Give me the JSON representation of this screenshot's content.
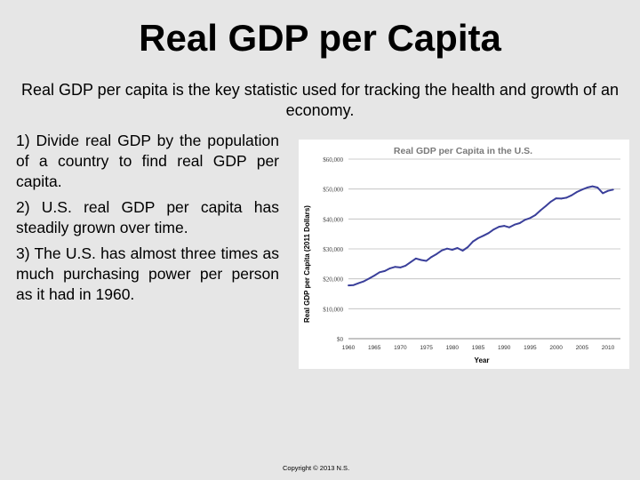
{
  "slide": {
    "title": "Real GDP per Capita",
    "subtitle": "Real GDP per capita is the key statistic used for tracking the health and growth of an economy.",
    "points": [
      "1) Divide real GDP by the population of a country to find real GDP per capita.",
      "2) U.S. real GDP per capita has steadily grown over time.",
      "3) The U.S. has almost three times as much purchasing power per person as it had in 1960."
    ],
    "copyright": "Copyright © 2013 N.S."
  },
  "chart_data": {
    "type": "line",
    "title": "Real GDP per Capita in the U.S.",
    "xlabel": "Year",
    "ylabel": "Real GDP per Capita (2011 Dollars)",
    "xlim": [
      1960,
      2010
    ],
    "ylim": [
      0,
      60000
    ],
    "x_ticks": [
      1960,
      1965,
      1970,
      1975,
      1980,
      1985,
      1990,
      1995,
      2000,
      2005,
      2010
    ],
    "y_ticks": [
      0,
      10000,
      20000,
      30000,
      40000,
      50000,
      60000
    ],
    "y_tick_labels": [
      "$0",
      "$10,000",
      "$20,000",
      "$30,000",
      "$40,000",
      "$50,000",
      "$60,000"
    ],
    "grid": "horizontal",
    "colors": {
      "line": "#3a3f9a",
      "grid": "#bcbcbc",
      "title": "#7a7a7a"
    },
    "series": [
      {
        "x": [
          1960,
          1961,
          1962,
          1963,
          1964,
          1965,
          1966,
          1967,
          1968,
          1969,
          1970,
          1971,
          1972,
          1973,
          1974,
          1975,
          1976,
          1977,
          1978,
          1979,
          1980,
          1981,
          1982,
          1983,
          1984,
          1985,
          1986,
          1987,
          1988,
          1989,
          1990,
          1991,
          1992,
          1993,
          1994,
          1995,
          1996,
          1997,
          1998,
          1999,
          2000,
          2001,
          2002,
          2003,
          2004,
          2005,
          2006,
          2007,
          2008,
          2009,
          2010,
          2011
        ],
        "values": [
          17800,
          17900,
          18600,
          19200,
          20100,
          21100,
          22200,
          22600,
          23500,
          24000,
          23800,
          24400,
          25600,
          26800,
          26300,
          26000,
          27300,
          28300,
          29500,
          30100,
          29700,
          30300,
          29400,
          30600,
          32500,
          33600,
          34400,
          35300,
          36500,
          37400,
          37700,
          37200,
          38100,
          38600,
          39700,
          40300,
          41300,
          42900,
          44300,
          45800,
          46900,
          46800,
          47100,
          47900,
          49000,
          49800,
          50500,
          50900,
          50500,
          48600,
          49400,
          49800
        ]
      }
    ]
  }
}
